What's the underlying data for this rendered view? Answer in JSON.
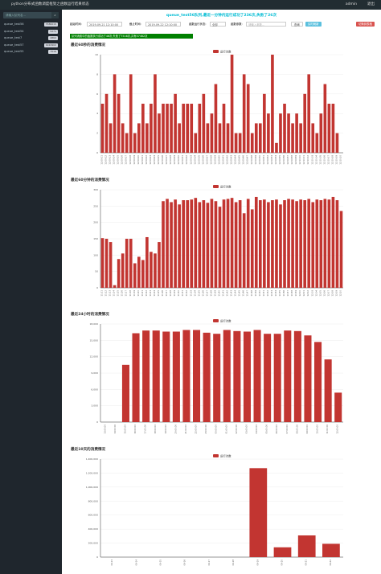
{
  "header": {
    "title": "python分布式函数调度框架之函数运行结果状态",
    "user": "admin",
    "logout": "退出"
  },
  "sidebar": {
    "search_placeholder": "请输入队列名...",
    "queues": [
      {
        "name": "queue_test56",
        "count": "7588215"
      },
      {
        "name": "queue_test54",
        "count": "5271"
      },
      {
        "name": "queue_test7",
        "count": "4862"
      },
      {
        "name": "queue_test57",
        "count": "1922902"
      },
      {
        "name": "queue_test55",
        "count": "7516"
      }
    ]
  },
  "status_text": "queue_test56队列,最近一分钟内运行成功了236次,失败了26次",
  "filters": {
    "start_label": "起始时间:",
    "start_value": "2019-09-21 12:10:00",
    "end_label": "截止时间:",
    "end_value": "2019-09-22 12:10:00",
    "status_label": "函数运行状态:",
    "status_value": "全部",
    "param_label": "函数参数:",
    "param_placeholder": "请输入参数...",
    "query": "查询",
    "refresh": "实时刷新",
    "switch": "切换到表格"
  },
  "notice": "队列消费中的函数执行成功了46次,失败了7516次,共有57482次",
  "chart_data": [
    {
      "type": "bar",
      "title": "最近60秒的消费情况",
      "legend": "运行次数",
      "color": "#c23531",
      "ylim": [
        0,
        10
      ],
      "yticks": [
        0,
        2,
        4,
        6,
        8,
        10
      ],
      "categories": [
        "12:09:11",
        "12:09:12",
        "12:09:13",
        "12:09:14",
        "12:09:15",
        "12:09:16",
        "12:09:17",
        "12:09:18",
        "12:09:19",
        "12:09:20",
        "12:09:21",
        "12:09:22",
        "12:09:23",
        "12:09:24",
        "12:09:25",
        "12:09:26",
        "12:09:27",
        "12:09:28",
        "12:09:29",
        "12:09:30",
        "12:09:31",
        "12:09:32",
        "12:09:33",
        "12:09:34",
        "12:09:35",
        "12:09:36",
        "12:09:37",
        "12:09:38",
        "12:09:39",
        "12:09:40",
        "12:09:41",
        "12:09:42",
        "12:09:43",
        "12:09:44",
        "12:09:45",
        "12:09:46",
        "12:09:47",
        "12:09:48",
        "12:09:49",
        "12:09:50",
        "12:09:51",
        "12:09:52",
        "12:09:53",
        "12:09:54",
        "12:09:55",
        "12:09:56",
        "12:09:57",
        "12:09:58",
        "12:09:59",
        "12:10:00",
        "12:10:01",
        "12:10:02",
        "12:10:03",
        "12:10:04",
        "12:10:05",
        "12:10:06",
        "12:10:07",
        "12:10:08",
        "12:10:09",
        "12:10:10"
      ],
      "values": [
        5,
        6,
        3,
        8,
        6,
        3,
        2,
        8,
        2,
        3,
        5,
        3,
        5,
        8,
        4,
        5,
        5,
        5,
        6,
        3,
        5,
        5,
        5,
        2,
        5,
        6,
        3,
        4,
        7,
        3,
        5,
        3,
        10,
        2,
        2,
        8,
        7,
        2,
        3,
        3,
        6,
        4,
        10,
        1,
        4,
        5,
        4,
        3,
        4,
        3,
        6,
        8,
        3,
        2,
        4,
        7,
        5,
        5,
        2,
        0
      ]
    },
    {
      "type": "bar",
      "title": "最近60分钟的消费情况",
      "legend": "运行次数",
      "color": "#c23531",
      "ylim": [
        0,
        300
      ],
      "yticks": [
        0,
        50,
        100,
        150,
        200,
        250,
        300
      ],
      "categories": [
        "11:11",
        "11:12",
        "11:13",
        "11:14",
        "11:15",
        "11:16",
        "11:17",
        "11:18",
        "11:19",
        "11:20",
        "11:21",
        "11:22",
        "11:23",
        "11:24",
        "11:25",
        "11:26",
        "11:27",
        "11:28",
        "11:29",
        "11:30",
        "11:31",
        "11:32",
        "11:33",
        "11:34",
        "11:35",
        "11:36",
        "11:37",
        "11:38",
        "11:39",
        "11:40",
        "11:41",
        "11:42",
        "11:43",
        "11:44",
        "11:45",
        "11:46",
        "11:47",
        "11:48",
        "11:49",
        "11:50",
        "11:51",
        "11:52",
        "11:53",
        "11:54",
        "11:55",
        "11:56",
        "11:57",
        "11:58",
        "11:59",
        "12:00",
        "12:01",
        "12:02",
        "12:03",
        "12:04",
        "12:05",
        "12:06",
        "12:07",
        "12:08",
        "12:09",
        "12:10"
      ],
      "values": [
        152,
        150,
        140,
        8,
        88,
        105,
        150,
        150,
        75,
        95,
        85,
        155,
        110,
        105,
        140,
        265,
        272,
        262,
        270,
        255,
        268,
        268,
        270,
        275,
        262,
        268,
        260,
        272,
        265,
        248,
        270,
        272,
        275,
        262,
        268,
        228,
        272,
        240,
        278,
        268,
        270,
        262,
        268,
        270,
        255,
        268,
        272,
        270,
        265,
        270,
        268,
        272,
        262,
        270,
        268,
        272,
        270,
        278,
        268,
        235
      ]
    },
    {
      "type": "bar",
      "title": "最近24小时的消费情况",
      "legend": "运行次数",
      "color": "#c23531",
      "ylim": [
        0,
        18000
      ],
      "yticks": [
        0,
        {
          "value": 3000,
          "label": "3,000"
        },
        {
          "value": 6000,
          "label": "6,000"
        },
        {
          "value": 9000,
          "label": "9,000"
        },
        {
          "value": 12000,
          "label": "12,000"
        },
        {
          "value": 15000,
          "label": "15,000"
        },
        {
          "value": 18000,
          "label": "18,000"
        }
      ],
      "categories": [
        "13:00:00",
        "14:00:00",
        "15:00:00",
        "16:00:00",
        "17:00:00",
        "18:00:00",
        "19:00:00",
        "20:00:00",
        "21:00:00",
        "22:00:00",
        "23:00:00",
        "00:00:00",
        "01:00:00",
        "02:00:00",
        "03:00:00",
        "04:00:00",
        "05:00:00",
        "06:00:00",
        "07:00:00",
        "08:00:00",
        "09:00:00",
        "10:00:00",
        "11:00:00",
        "12:00:00"
      ],
      "values": [
        0,
        0,
        10500,
        16300,
        16800,
        16800,
        16600,
        16600,
        16900,
        16900,
        16400,
        16200,
        16900,
        16700,
        16600,
        16900,
        16200,
        16200,
        16800,
        16700,
        15900,
        14700,
        11500,
        5400
      ]
    },
    {
      "type": "bar",
      "title": "最近10天的消费情况",
      "legend": "运行次数",
      "color": "#c23531",
      "ylim": [
        0,
        1400000
      ],
      "yticks": [
        0,
        {
          "value": 200000,
          "label": "200,000"
        },
        {
          "value": 400000,
          "label": "400,000"
        },
        {
          "value": 600000,
          "label": "600,000"
        },
        {
          "value": 800000,
          "label": "800,000"
        },
        {
          "value": 1000000,
          "label": "1,000,000"
        },
        {
          "value": 1200000,
          "label": "1,200,000"
        },
        {
          "value": 1400000,
          "label": "1,400,000"
        }
      ],
      "categories": [
        "09-13",
        "09-14",
        "09-15",
        "09-16",
        "09-17",
        "09-18",
        "09-19",
        "09-20",
        "09-21",
        "09-22"
      ],
      "values": [
        0,
        0,
        0,
        0,
        0,
        0,
        1270000,
        140000,
        310000,
        190000
      ]
    }
  ]
}
